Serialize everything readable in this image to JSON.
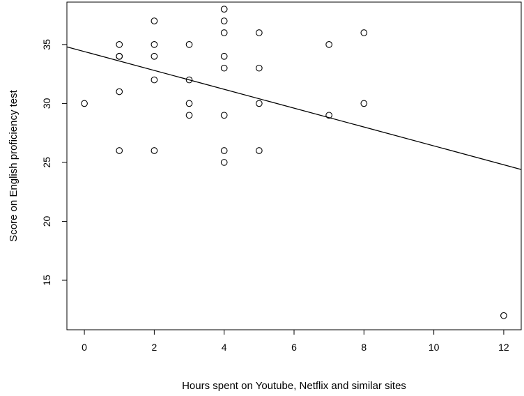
{
  "chart_data": {
    "type": "scatter",
    "xlabel": "Hours spent on Youtube, Netflix and similar sites",
    "ylabel": "Score on English proficiency test",
    "xlim": [
      -0.5,
      12.5
    ],
    "ylim": [
      10.8,
      38.6
    ],
    "xticks": [
      0,
      2,
      4,
      6,
      8,
      10,
      12
    ],
    "yticks": [
      15,
      20,
      25,
      30,
      35
    ],
    "grid": false,
    "points": [
      {
        "x": 0,
        "y": 30
      },
      {
        "x": 1,
        "y": 35
      },
      {
        "x": 1,
        "y": 34
      },
      {
        "x": 1,
        "y": 34
      },
      {
        "x": 1,
        "y": 31
      },
      {
        "x": 1,
        "y": 26
      },
      {
        "x": 2,
        "y": 37
      },
      {
        "x": 2,
        "y": 35
      },
      {
        "x": 2,
        "y": 34
      },
      {
        "x": 2,
        "y": 32
      },
      {
        "x": 2,
        "y": 26
      },
      {
        "x": 3,
        "y": 35
      },
      {
        "x": 3,
        "y": 32
      },
      {
        "x": 3,
        "y": 30
      },
      {
        "x": 3,
        "y": 29
      },
      {
        "x": 4,
        "y": 38
      },
      {
        "x": 4,
        "y": 37
      },
      {
        "x": 4,
        "y": 36
      },
      {
        "x": 4,
        "y": 34
      },
      {
        "x": 4,
        "y": 33
      },
      {
        "x": 4,
        "y": 29
      },
      {
        "x": 4,
        "y": 26
      },
      {
        "x": 4,
        "y": 25
      },
      {
        "x": 5,
        "y": 36
      },
      {
        "x": 5,
        "y": 33
      },
      {
        "x": 5,
        "y": 30
      },
      {
        "x": 5,
        "y": 26
      },
      {
        "x": 7,
        "y": 35
      },
      {
        "x": 7,
        "y": 29
      },
      {
        "x": 8,
        "y": 36
      },
      {
        "x": 8,
        "y": 30
      },
      {
        "x": 12,
        "y": 12
      }
    ],
    "regression_line": {
      "intercept": 34.4,
      "slope": -0.8
    }
  }
}
